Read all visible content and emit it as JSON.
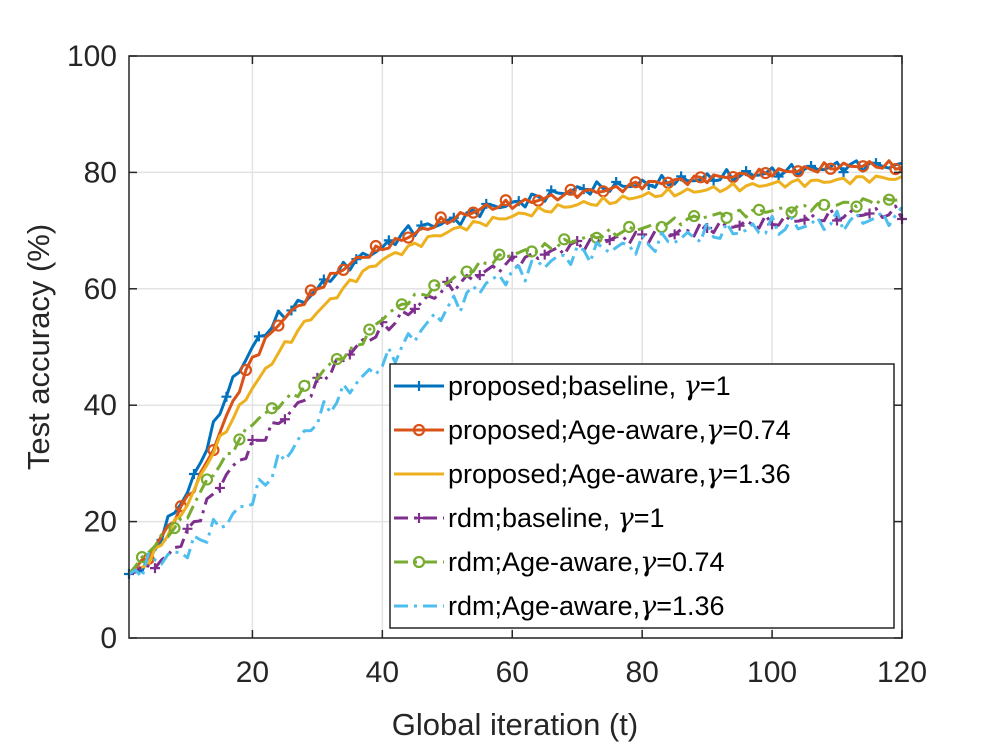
{
  "chart_data": {
    "type": "line",
    "xlabel": "Global iteration (t)",
    "ylabel": "Test accuracy (%)",
    "xlim": [
      1,
      120
    ],
    "ylim": [
      0,
      100
    ],
    "xticks": [
      20,
      40,
      60,
      80,
      100,
      120
    ],
    "yticks": [
      0,
      20,
      40,
      60,
      80,
      100
    ],
    "x_tick_labels": [
      "20",
      "40",
      "60",
      "80",
      "100",
      "120"
    ],
    "y_tick_labels": [
      "0",
      "20",
      "40",
      "60",
      "80",
      "100"
    ],
    "grid": true,
    "legend_location": "inside-lower-right",
    "series": [
      {
        "name": "proposed;baseline, γ=1",
        "legend_prefix": "proposed;baseline, ",
        "legend_suffix": "=1",
        "color": "#0072BD",
        "line": "solid",
        "marker": "plus",
        "anchors": [
          [
            1,
            11
          ],
          [
            4,
            13
          ],
          [
            7,
            20
          ],
          [
            10,
            25
          ],
          [
            13,
            33
          ],
          [
            16,
            42
          ],
          [
            20,
            50
          ],
          [
            24,
            55
          ],
          [
            28,
            58
          ],
          [
            32,
            62
          ],
          [
            36,
            65
          ],
          [
            40,
            67
          ],
          [
            44,
            70
          ],
          [
            48,
            71
          ],
          [
            52,
            72
          ],
          [
            56,
            74
          ],
          [
            60,
            74.5
          ],
          [
            65,
            76
          ],
          [
            70,
            77
          ],
          [
            75,
            77.5
          ],
          [
            80,
            78
          ],
          [
            85,
            78.5
          ],
          [
            90,
            79
          ],
          [
            95,
            79.5
          ],
          [
            100,
            80
          ],
          [
            105,
            80.5
          ],
          [
            110,
            81
          ],
          [
            115,
            81.3
          ],
          [
            120,
            81
          ]
        ],
        "jitter": 1.2
      },
      {
        "name": "proposed;Age-aware,γ=0.74",
        "legend_prefix": "proposed;Age-aware,",
        "legend_suffix": "=0.74",
        "color": "#D95319",
        "line": "solid",
        "marker": "circle",
        "anchors": [
          [
            1,
            11
          ],
          [
            4,
            14
          ],
          [
            7,
            19
          ],
          [
            10,
            24
          ],
          [
            13,
            30
          ],
          [
            16,
            38
          ],
          [
            20,
            48
          ],
          [
            24,
            54
          ],
          [
            28,
            58
          ],
          [
            32,
            62
          ],
          [
            36,
            65
          ],
          [
            40,
            67
          ],
          [
            44,
            69
          ],
          [
            48,
            71
          ],
          [
            52,
            72.5
          ],
          [
            56,
            74
          ],
          [
            60,
            74.5
          ],
          [
            65,
            75.5
          ],
          [
            70,
            76.5
          ],
          [
            75,
            77
          ],
          [
            80,
            78
          ],
          [
            85,
            78.5
          ],
          [
            90,
            79
          ],
          [
            95,
            79.5
          ],
          [
            100,
            80
          ],
          [
            105,
            80.5
          ],
          [
            110,
            81
          ],
          [
            115,
            81.3
          ],
          [
            120,
            81
          ]
        ],
        "jitter": 0.9
      },
      {
        "name": "proposed;Age-aware,γ=1.36",
        "legend_prefix": "proposed;Age-aware,",
        "legend_suffix": "=1.36",
        "color": "#EDB120",
        "line": "solid",
        "marker": "none",
        "anchors": [
          [
            1,
            11
          ],
          [
            4,
            13
          ],
          [
            7,
            18
          ],
          [
            10,
            23
          ],
          [
            13,
            30
          ],
          [
            16,
            36
          ],
          [
            20,
            43
          ],
          [
            24,
            49
          ],
          [
            28,
            54
          ],
          [
            32,
            58
          ],
          [
            36,
            62
          ],
          [
            40,
            65
          ],
          [
            44,
            67
          ],
          [
            48,
            69
          ],
          [
            52,
            70.5
          ],
          [
            56,
            71.5
          ],
          [
            60,
            72.5
          ],
          [
            65,
            73.5
          ],
          [
            70,
            74.5
          ],
          [
            75,
            75
          ],
          [
            80,
            76
          ],
          [
            85,
            76.5
          ],
          [
            90,
            77
          ],
          [
            95,
            77.5
          ],
          [
            100,
            78
          ],
          [
            105,
            78.3
          ],
          [
            110,
            78.6
          ],
          [
            115,
            79
          ],
          [
            120,
            79
          ]
        ],
        "jitter": 0.8
      },
      {
        "name": "rdm;baseline, γ=1",
        "legend_prefix": "rdm;baseline, ",
        "legend_suffix": "=1",
        "color": "#7E2F8E",
        "line": "dashdot",
        "marker": "plus",
        "anchors": [
          [
            1,
            11
          ],
          [
            4,
            12
          ],
          [
            7,
            14
          ],
          [
            10,
            18
          ],
          [
            13,
            23
          ],
          [
            16,
            28
          ],
          [
            20,
            33
          ],
          [
            24,
            37
          ],
          [
            28,
            41
          ],
          [
            32,
            46
          ],
          [
            36,
            50
          ],
          [
            40,
            53
          ],
          [
            44,
            56
          ],
          [
            48,
            59
          ],
          [
            52,
            61
          ],
          [
            56,
            63
          ],
          [
            60,
            64.5
          ],
          [
            65,
            66
          ],
          [
            70,
            67.5
          ],
          [
            75,
            68.5
          ],
          [
            80,
            69
          ],
          [
            85,
            69.5
          ],
          [
            90,
            70.5
          ],
          [
            95,
            71
          ],
          [
            100,
            71.5
          ],
          [
            105,
            72
          ],
          [
            110,
            72.5
          ],
          [
            115,
            73
          ],
          [
            120,
            73
          ]
        ],
        "jitter": 1.3
      },
      {
        "name": "rdm;Age-aware,γ=0.74",
        "legend_prefix": "rdm;Age-aware,",
        "legend_suffix": "=0.74",
        "color": "#77AC30",
        "line": "dashdot",
        "marker": "circle",
        "anchors": [
          [
            1,
            11
          ],
          [
            4,
            15
          ],
          [
            7,
            18
          ],
          [
            10,
            21
          ],
          [
            13,
            27
          ],
          [
            16,
            31
          ],
          [
            20,
            37
          ],
          [
            24,
            40
          ],
          [
            28,
            43
          ],
          [
            32,
            47
          ],
          [
            36,
            50
          ],
          [
            40,
            55
          ],
          [
            44,
            58
          ],
          [
            48,
            60
          ],
          [
            52,
            62.5
          ],
          [
            56,
            64.5
          ],
          [
            60,
            66
          ],
          [
            65,
            67
          ],
          [
            70,
            68.5
          ],
          [
            75,
            69.5
          ],
          [
            80,
            70.5
          ],
          [
            85,
            71.5
          ],
          [
            90,
            72.5
          ],
          [
            95,
            73
          ],
          [
            100,
            73.5
          ],
          [
            105,
            74
          ],
          [
            110,
            74.5
          ],
          [
            115,
            75
          ],
          [
            120,
            75.5
          ]
        ],
        "jitter": 0.8
      },
      {
        "name": "rdm;Age-aware,γ=1.36",
        "legend_prefix": "rdm;Age-aware,",
        "legend_suffix": "=1.36",
        "color": "#4DBEEE",
        "line": "dashdot",
        "marker": "none",
        "anchors": [
          [
            1,
            11
          ],
          [
            4,
            13
          ],
          [
            7,
            14
          ],
          [
            10,
            15
          ],
          [
            13,
            18
          ],
          [
            16,
            20
          ],
          [
            20,
            24
          ],
          [
            24,
            30
          ],
          [
            28,
            35
          ],
          [
            32,
            40
          ],
          [
            36,
            44
          ],
          [
            40,
            47
          ],
          [
            44,
            51
          ],
          [
            48,
            55
          ],
          [
            52,
            58
          ],
          [
            56,
            61
          ],
          [
            60,
            62.5
          ],
          [
            65,
            64.5
          ],
          [
            70,
            66
          ],
          [
            75,
            67
          ],
          [
            80,
            67.5
          ],
          [
            85,
            68.5
          ],
          [
            90,
            69.5
          ],
          [
            95,
            70
          ],
          [
            100,
            70.5
          ],
          [
            105,
            71
          ],
          [
            110,
            71.5
          ],
          [
            115,
            72
          ],
          [
            120,
            72.5
          ]
        ],
        "jitter": 2.0
      }
    ]
  }
}
